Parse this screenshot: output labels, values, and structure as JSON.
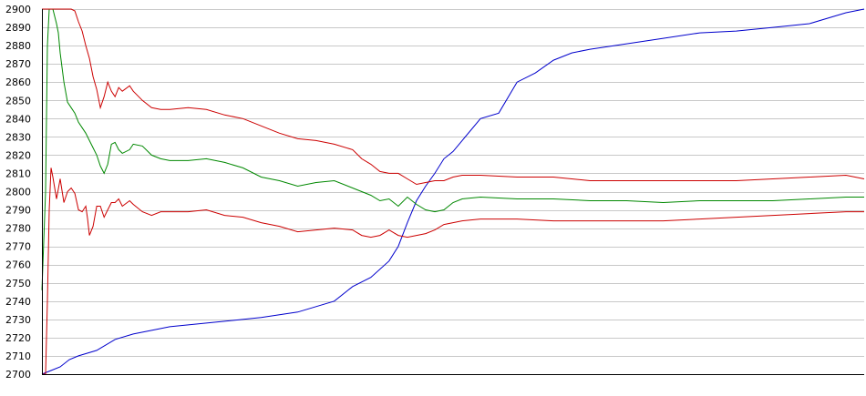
{
  "chart_data": {
    "type": "line",
    "title": "",
    "xlabel": "",
    "ylabel": "",
    "ylim": [
      2700,
      2900
    ],
    "xlim": [
      0,
      450
    ],
    "grid": true,
    "y_ticks": [
      2700,
      2710,
      2720,
      2730,
      2740,
      2750,
      2760,
      2770,
      2780,
      2790,
      2800,
      2810,
      2820,
      2830,
      2840,
      2850,
      2860,
      2870,
      2880,
      2890,
      2900
    ],
    "series": [
      {
        "color": "#0000cc",
        "x": [
          0,
          5,
          10,
          15,
          20,
          30,
          40,
          50,
          60,
          70,
          80,
          100,
          120,
          140,
          160,
          170,
          180,
          190,
          195,
          200,
          205,
          210,
          215,
          220,
          225,
          230,
          240,
          250,
          260,
          270,
          280,
          290,
          300,
          320,
          340,
          360,
          380,
          400,
          420,
          440,
          450
        ],
        "values": [
          2700,
          2702,
          2704,
          2708,
          2710,
          2713,
          2719,
          2722,
          2724,
          2726,
          2727,
          2729,
          2731,
          2734,
          2740,
          2748,
          2753,
          2762,
          2770,
          2783,
          2795,
          2803,
          2810,
          2818,
          2822,
          2828,
          2840,
          2843,
          2860,
          2865,
          2872,
          2876,
          2878,
          2881,
          2884,
          2887,
          2888,
          2890,
          2892,
          2898,
          2900
        ]
      },
      {
        "color": "#008800",
        "x": [
          0,
          2,
          3,
          4,
          6,
          8,
          9,
          10,
          12,
          14,
          16,
          18,
          20,
          24,
          26,
          28,
          30,
          32,
          34,
          36,
          38,
          40,
          42,
          44,
          48,
          50,
          55,
          60,
          65,
          70,
          80,
          90,
          100,
          110,
          120,
          130,
          140,
          150,
          160,
          170,
          175,
          180,
          185,
          190,
          195,
          200,
          205,
          210,
          215,
          220,
          225,
          230,
          240,
          260,
          280,
          300,
          320,
          340,
          360,
          380,
          400,
          420,
          440,
          450
        ],
        "values": [
          2746,
          2800,
          2880,
          2900,
          2900,
          2892,
          2887,
          2876,
          2860,
          2849,
          2846,
          2843,
          2838,
          2832,
          2828,
          2824,
          2820,
          2814,
          2810,
          2815,
          2826,
          2827,
          2823,
          2821,
          2823,
          2826,
          2825,
          2820,
          2818,
          2817,
          2817,
          2818,
          2816,
          2813,
          2808,
          2806,
          2803,
          2805,
          2806,
          2802,
          2800,
          2798,
          2795,
          2796,
          2792,
          2797,
          2793,
          2790,
          2789,
          2790,
          2794,
          2796,
          2797,
          2796,
          2796,
          2795,
          2795,
          2794,
          2795,
          2795,
          2795,
          2796,
          2797,
          2797
        ]
      },
      {
        "color": "#cc0000",
        "x": [
          0,
          2,
          3,
          4,
          6,
          8,
          10,
          12,
          14,
          16,
          18,
          20,
          22,
          24,
          26,
          28,
          30,
          32,
          34,
          36,
          38,
          40,
          42,
          44,
          48,
          50,
          55,
          60,
          65,
          70,
          80,
          90,
          100,
          110,
          120,
          130,
          140,
          150,
          160,
          170,
          175,
          180,
          185,
          190,
          195,
          200,
          205,
          210,
          215,
          220,
          225,
          230,
          240,
          260,
          280,
          300,
          320,
          340,
          360,
          380,
          400,
          420,
          440,
          450
        ],
        "values": [
          2900,
          2900,
          2900,
          2900,
          2900,
          2900,
          2900,
          2900,
          2900,
          2900,
          2899,
          2893,
          2888,
          2880,
          2873,
          2863,
          2856,
          2846,
          2852,
          2860,
          2855,
          2852,
          2857,
          2855,
          2858,
          2855,
          2850,
          2846,
          2845,
          2845,
          2846,
          2845,
          2842,
          2840,
          2836,
          2832,
          2829,
          2828,
          2826,
          2823,
          2818,
          2815,
          2811,
          2810,
          2810,
          2807,
          2804,
          2805,
          2806,
          2806,
          2808,
          2809,
          2809,
          2808,
          2808,
          2806,
          2806,
          2806,
          2806,
          2806,
          2807,
          2808,
          2809,
          2807
        ]
      },
      {
        "color": "#cc0000",
        "x": [
          0,
          2,
          3,
          4,
          5,
          6,
          8,
          10,
          12,
          14,
          16,
          18,
          20,
          22,
          24,
          25,
          26,
          28,
          30,
          32,
          34,
          36,
          38,
          40,
          42,
          44,
          48,
          50,
          55,
          60,
          65,
          70,
          80,
          90,
          100,
          110,
          120,
          130,
          140,
          150,
          160,
          170,
          175,
          180,
          185,
          190,
          195,
          200,
          205,
          210,
          215,
          220,
          225,
          230,
          240,
          260,
          280,
          300,
          320,
          340,
          360,
          380,
          400,
          420,
          440,
          450
        ],
        "values": [
          2700,
          2700,
          2740,
          2790,
          2813,
          2808,
          2796,
          2807,
          2794,
          2800,
          2802,
          2799,
          2790,
          2789,
          2792,
          2785,
          2776,
          2781,
          2792,
          2792,
          2786,
          2790,
          2794,
          2794,
          2796,
          2792,
          2795,
          2793,
          2789,
          2787,
          2789,
          2789,
          2789,
          2790,
          2787,
          2786,
          2783,
          2781,
          2778,
          2779,
          2780,
          2779,
          2776,
          2775,
          2776,
          2779,
          2776,
          2775,
          2776,
          2777,
          2779,
          2782,
          2783,
          2784,
          2785,
          2785,
          2784,
          2784,
          2784,
          2784,
          2785,
          2786,
          2787,
          2788,
          2789,
          2789
        ]
      }
    ]
  }
}
